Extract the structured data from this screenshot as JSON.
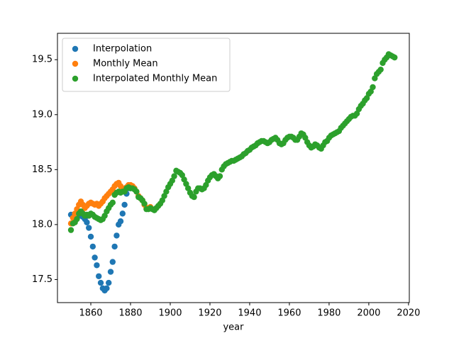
{
  "chart_data": {
    "type": "scatter",
    "xlabel": "year",
    "xlim": [
      1843.2,
      2020.4
    ],
    "ylim": [
      17.29,
      19.74
    ],
    "xticks": [
      1860,
      1880,
      1900,
      1920,
      1940,
      1960,
      1980,
      2000,
      2020
    ],
    "yticks": [
      17.5,
      {
        "value": 18,
        "label": "18.0"
      },
      18.5,
      {
        "value": 19,
        "label": "19.0"
      },
      19.5
    ],
    "legend": "upper left",
    "series": [
      {
        "name": "Interpolation",
        "color": "#1f77b4",
        "x": [
          1850,
          1851,
          1852,
          1853,
          1854,
          1855,
          1856,
          1857,
          1858,
          1859,
          1860,
          1861,
          1862,
          1863,
          1864,
          1865,
          1866,
          1867,
          1868,
          1869,
          1870,
          1871,
          1872,
          1873,
          1874,
          1875,
          1876,
          1877,
          1878,
          1879,
          1880
        ],
        "values": [
          18.09,
          18.08,
          18.07,
          18.1,
          18.1,
          18.08,
          18.07,
          18.05,
          18.02,
          17.97,
          17.89,
          17.8,
          17.7,
          17.63,
          17.53,
          17.47,
          17.42,
          17.4,
          17.42,
          17.47,
          17.57,
          17.66,
          17.8,
          17.9,
          18.0,
          18.03,
          18.1,
          18.18,
          18.28,
          18.33,
          18.33
        ]
      },
      {
        "name": "Monthly Mean",
        "color": "#ff7f0e",
        "x": [
          1850,
          1851,
          1852,
          1853,
          1854,
          1855,
          1856,
          1857,
          1858,
          1859,
          1860,
          1861,
          1862,
          1863,
          1864,
          1865,
          1866,
          1867,
          1868,
          1869,
          1870,
          1871,
          1872,
          1873,
          1874,
          1875,
          1876,
          1877,
          1878,
          1879,
          1880,
          1881,
          1882,
          1883,
          1884,
          1885,
          1886,
          1887,
          1888,
          1889,
          1890
        ],
        "values": [
          18.01,
          18.06,
          18.1,
          18.14,
          18.18,
          18.21,
          18.18,
          18.15,
          18.17,
          18.19,
          18.2,
          18.19,
          18.18,
          18.19,
          18.17,
          18.19,
          18.21,
          18.24,
          18.26,
          18.28,
          18.3,
          18.32,
          18.35,
          18.37,
          18.38,
          18.35,
          18.33,
          18.31,
          18.34,
          18.36,
          18.36,
          18.35,
          18.33,
          18.3,
          18.26,
          18.24,
          18.22,
          18.18,
          18.15,
          18.15,
          18.16
        ]
      },
      {
        "name": "Interpolated Monthly Mean",
        "color": "#2ca02c",
        "x": [
          1850,
          1851,
          1852,
          1853,
          1854,
          1855,
          1856,
          1857,
          1858,
          1859,
          1860,
          1861,
          1862,
          1863,
          1864,
          1865,
          1866,
          1867,
          1868,
          1869,
          1870,
          1871,
          1872,
          1873,
          1874,
          1875,
          1876,
          1877,
          1878,
          1879,
          1880,
          1881,
          1882,
          1883,
          1884,
          1885,
          1886,
          1887,
          1888,
          1889,
          1890,
          1891,
          1892,
          1893,
          1894,
          1895,
          1896,
          1897,
          1898,
          1899,
          1900,
          1901,
          1902,
          1903,
          1904,
          1905,
          1906,
          1907,
          1908,
          1909,
          1910,
          1911,
          1912,
          1913,
          1914,
          1915,
          1916,
          1917,
          1918,
          1919,
          1920,
          1921,
          1922,
          1923,
          1924,
          1925,
          1926,
          1927,
          1928,
          1929,
          1930,
          1931,
          1932,
          1933,
          1934,
          1935,
          1936,
          1937,
          1938,
          1939,
          1940,
          1941,
          1942,
          1943,
          1944,
          1945,
          1946,
          1947,
          1948,
          1949,
          1950,
          1951,
          1952,
          1953,
          1954,
          1955,
          1956,
          1957,
          1958,
          1959,
          1960,
          1961,
          1962,
          1963,
          1964,
          1965,
          1966,
          1967,
          1968,
          1969,
          1970,
          1971,
          1972,
          1973,
          1974,
          1975,
          1976,
          1977,
          1978,
          1979,
          1980,
          1981,
          1982,
          1983,
          1984,
          1985,
          1986,
          1987,
          1988,
          1989,
          1990,
          1991,
          1992,
          1993,
          1994,
          1995,
          1996,
          1997,
          1998,
          1999,
          2000,
          2001,
          2002,
          2003,
          2004,
          2005,
          2006,
          2007,
          2008,
          2009,
          2010,
          2011,
          2012,
          2013
        ],
        "values": [
          17.95,
          18.01,
          18.02,
          18.05,
          18.1,
          18.12,
          18.1,
          18.08,
          18.09,
          18.08,
          18.1,
          18.09,
          18.07,
          18.06,
          18.05,
          18.04,
          18.05,
          18.08,
          18.12,
          18.15,
          18.18,
          18.2,
          18.27,
          18.29,
          18.3,
          18.29,
          18.3,
          18.3,
          18.33,
          18.34,
          18.33,
          18.33,
          18.32,
          18.3,
          18.25,
          18.24,
          18.22,
          18.19,
          18.14,
          18.14,
          18.15,
          18.14,
          18.13,
          18.15,
          18.17,
          18.19,
          18.22,
          18.26,
          18.3,
          18.34,
          18.37,
          18.4,
          18.44,
          18.49,
          18.48,
          18.47,
          18.45,
          18.41,
          18.37,
          18.33,
          18.29,
          18.26,
          18.25,
          18.3,
          18.33,
          18.33,
          18.32,
          18.33,
          18.36,
          18.4,
          18.43,
          18.45,
          18.46,
          18.44,
          18.42,
          18.44,
          18.5,
          18.53,
          18.55,
          18.56,
          18.57,
          18.58,
          18.58,
          18.59,
          18.6,
          18.61,
          18.62,
          18.64,
          18.65,
          18.67,
          18.68,
          18.7,
          18.71,
          18.72,
          18.74,
          18.75,
          18.76,
          18.76,
          18.75,
          18.74,
          18.75,
          18.77,
          18.78,
          18.79,
          18.77,
          18.74,
          18.73,
          18.74,
          18.77,
          18.79,
          18.8,
          18.8,
          18.79,
          18.77,
          18.77,
          18.8,
          18.83,
          18.82,
          18.79,
          18.75,
          18.72,
          18.7,
          18.71,
          18.73,
          18.72,
          18.7,
          18.69,
          18.72,
          18.75,
          18.76,
          18.79,
          18.81,
          18.82,
          18.83,
          18.84,
          18.85,
          18.88,
          18.9,
          18.92,
          18.94,
          18.96,
          18.98,
          18.99,
          18.99,
          19.01,
          19.05,
          19.08,
          19.1,
          19.13,
          19.15,
          19.19,
          19.21,
          19.25,
          19.33,
          19.37,
          19.39,
          19.41,
          19.47,
          19.5,
          19.52,
          19.55,
          19.54,
          19.53,
          19.52
        ]
      }
    ]
  }
}
